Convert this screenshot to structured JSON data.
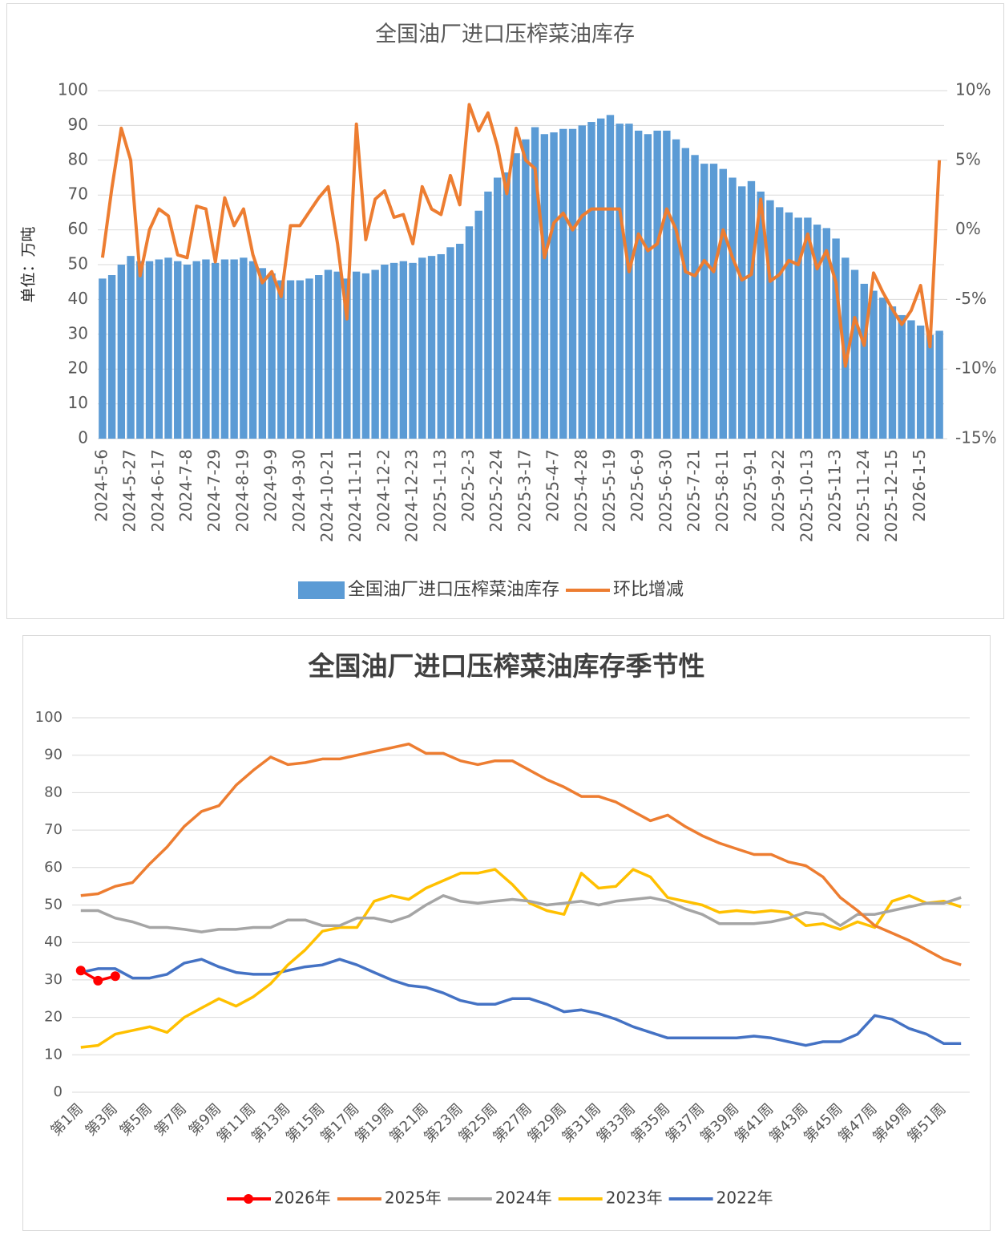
{
  "chart_data": [
    {
      "type": "combo",
      "title": "全国油厂进口压榨菜油库存",
      "y_label": "单位：万吨",
      "grid": true,
      "legend": "bottom",
      "categories": [
        "2024-5-6",
        null,
        null,
        "2024-5-27",
        null,
        null,
        "2024-6-17",
        null,
        null,
        "2024-7-8",
        null,
        null,
        "2024-7-29",
        null,
        null,
        "2024-8-19",
        null,
        null,
        "2024-9-9",
        null,
        null,
        "2024-9-30",
        null,
        null,
        "2024-10-21",
        null,
        null,
        "2024-11-11",
        null,
        null,
        "2024-12-2",
        null,
        null,
        "2024-12-23",
        null,
        null,
        "2025-1-13",
        null,
        null,
        "2025-2-3",
        null,
        null,
        "2025-2-24",
        null,
        null,
        "2025-3-17",
        null,
        null,
        "2025-4-7",
        null,
        null,
        "2025-4-28",
        null,
        null,
        "2025-5-19",
        null,
        null,
        "2025-6-9",
        null,
        null,
        "2025-6-30",
        null,
        null,
        "2025-7-21",
        null,
        null,
        "2025-8-11",
        null,
        null,
        "2025-9-1",
        null,
        null,
        "2025-9-22",
        null,
        null,
        "2025-10-13",
        null,
        null,
        "2025-11-3",
        null,
        null,
        "2025-11-24",
        null,
        null,
        "2025-12-15",
        null,
        null,
        "2026-1-5",
        null,
        null
      ],
      "ylim": [
        0,
        100
      ],
      "yticks": [
        0,
        10,
        20,
        30,
        40,
        50,
        60,
        70,
        80,
        90,
        100
      ],
      "y2lim": [
        -15,
        10
      ],
      "y2ticks": [
        {
          "value": -15,
          "label": "-15%"
        },
        {
          "value": -10,
          "label": "-10%"
        },
        {
          "value": -5,
          "label": "-5%"
        },
        {
          "value": 0,
          "label": "0%"
        },
        {
          "value": 5,
          "label": "5%"
        },
        {
          "value": 10,
          "label": "10%"
        }
      ],
      "series": [
        {
          "name": "全国油厂进口压榨菜油库存",
          "kind": "bar",
          "color": "#5b9bd5",
          "values": [
            46,
            47,
            50,
            52.5,
            51,
            51,
            51.5,
            52,
            51,
            50,
            51,
            51.5,
            50.5,
            51.5,
            51.5,
            52,
            51,
            49,
            47.5,
            45.5,
            45.5,
            45.5,
            46,
            47,
            48.5,
            48,
            46,
            48,
            47.5,
            48.5,
            50,
            50.5,
            51,
            50.5,
            52,
            52.5,
            53,
            55,
            56,
            61,
            65.5,
            71,
            75,
            76.5,
            82,
            86,
            89.5,
            87.5,
            88,
            89,
            89,
            90,
            91,
            92,
            93,
            90.5,
            90.5,
            88.5,
            87.5,
            88.5,
            88.5,
            86,
            83.5,
            81.5,
            79,
            79,
            77.5,
            75,
            72.5,
            74,
            71,
            68.5,
            66.5,
            65,
            63.5,
            63.5,
            61.5,
            60.5,
            57.5,
            52,
            48.5,
            44.5,
            42.5,
            40.5,
            38,
            35.5,
            34,
            32.5,
            29.8,
            31
          ]
        },
        {
          "name": "环比增减",
          "kind": "line",
          "axis": "y2",
          "color": "#ed7d31",
          "values": [
            -2,
            3,
            7.3,
            5,
            -3.3,
            0,
            1.5,
            1,
            -1.8,
            -2,
            1.7,
            1.5,
            -2.3,
            2.3,
            0.3,
            1.5,
            -1.8,
            -3.8,
            -3,
            -4.8,
            0.3,
            0.3,
            1.3,
            2.3,
            3.1,
            -1,
            -6.4,
            7.6,
            -0.7,
            2.2,
            2.8,
            0.9,
            1.1,
            -1,
            3.1,
            1.5,
            1.1,
            3.9,
            1.8,
            9,
            7.1,
            8.4,
            6,
            2.6,
            7.3,
            5,
            4.4,
            -2,
            0.5,
            1.2,
            0,
            1,
            1.5,
            1.5,
            1.5,
            1.5,
            -3,
            -0.3,
            -1.5,
            -1,
            1.5,
            0,
            -3,
            -3.3,
            -2.2,
            -3,
            0,
            -2,
            -3.6,
            -3.2,
            2.2,
            -3.7,
            -3.2,
            -2.2,
            -2.5,
            -0.3,
            -2.8,
            -1.5,
            -3.8,
            -9.8,
            -6.3,
            -8.3,
            -3.1,
            -4.5,
            -5.7,
            -6.8,
            -5.8,
            -4,
            -8.4,
            5
          ]
        }
      ]
    },
    {
      "type": "line",
      "title": "全国油厂进口压榨菜油库存季节性",
      "grid": true,
      "legend": "bottom",
      "categories": [
        "第1周",
        null,
        "第3周",
        null,
        "第5周",
        null,
        "第7周",
        null,
        "第9周",
        null,
        "第11周",
        null,
        "第13周",
        null,
        "第15周",
        null,
        "第17周",
        null,
        "第19周",
        null,
        "第21周",
        null,
        "第23周",
        null,
        "第25周",
        null,
        "第27周",
        null,
        "第29周",
        null,
        "第31周",
        null,
        "第33周",
        null,
        "第35周",
        null,
        "第37周",
        null,
        "第39周",
        null,
        "第41周",
        null,
        "第43周",
        null,
        "第45周",
        null,
        "第47周",
        null,
        "第49周",
        null,
        "第51周",
        null
      ],
      "ylim": [
        0,
        100
      ],
      "yticks": [
        0,
        10,
        20,
        30,
        40,
        50,
        60,
        70,
        80,
        90,
        100
      ],
      "series": [
        {
          "name": "2026年",
          "color": "#ff0000",
          "markers": true,
          "values": [
            32.5,
            29.8,
            31,
            null,
            null,
            null,
            null,
            null,
            null,
            null,
            null,
            null,
            null,
            null,
            null,
            null,
            null,
            null,
            null,
            null,
            null,
            null,
            null,
            null,
            null,
            null,
            null,
            null,
            null,
            null,
            null,
            null,
            null,
            null,
            null,
            null,
            null,
            null,
            null,
            null,
            null,
            null,
            null,
            null,
            null,
            null,
            null,
            null,
            null,
            null,
            null,
            null
          ]
        },
        {
          "name": "2025年",
          "color": "#ed7d31",
          "values": [
            52.5,
            53,
            55,
            56,
            61,
            65.5,
            71,
            75,
            76.5,
            82,
            86,
            89.5,
            87.5,
            88,
            89,
            89,
            90,
            91,
            92,
            93,
            90.5,
            90.5,
            88.5,
            87.5,
            88.5,
            88.5,
            86,
            83.5,
            81.5,
            79,
            79,
            77.5,
            75,
            72.5,
            74,
            71,
            68.5,
            66.5,
            65,
            63.5,
            63.5,
            61.5,
            60.5,
            57.5,
            52,
            48.5,
            44.5,
            42.5,
            40.5,
            38,
            35.5,
            34
          ]
        },
        {
          "name": "2024年",
          "color": "#a5a5a5",
          "values": [
            48.5,
            48.5,
            46.5,
            45.5,
            44,
            44,
            43.5,
            42.8,
            43.5,
            43.5,
            44,
            44,
            46,
            46,
            44.5,
            44.5,
            46.5,
            46.5,
            45.5,
            47,
            50,
            52.5,
            51,
            50.5,
            51,
            51.5,
            51,
            50,
            50.5,
            51,
            50,
            51,
            51.5,
            52,
            51,
            49,
            47.5,
            45,
            45,
            45,
            45.5,
            46.5,
            48,
            47.5,
            44.5,
            47.5,
            47.5,
            48.5,
            49.5,
            50.5,
            50.5,
            52
          ]
        },
        {
          "name": "2023年",
          "color": "#ffc000",
          "values": [
            12,
            12.5,
            15.5,
            16.5,
            17.5,
            16,
            20,
            22.5,
            25,
            23,
            25.5,
            29,
            34,
            38,
            43,
            44,
            44,
            51,
            52.5,
            51.5,
            54.5,
            56.5,
            58.5,
            58.5,
            59.5,
            55.5,
            50.5,
            48.5,
            47.5,
            58.5,
            54.5,
            55,
            59.5,
            57.5,
            52,
            51,
            50,
            48,
            48.5,
            48,
            48.5,
            48,
            44.5,
            45,
            43.5,
            45.5,
            44,
            51,
            52.5,
            50.5,
            51,
            49.5
          ]
        },
        {
          "name": "2022年",
          "color": "#4472c4",
          "values": [
            32,
            33,
            33,
            30.5,
            30.5,
            31.5,
            34.5,
            35.5,
            33.5,
            32,
            31.5,
            31.5,
            32.5,
            33.5,
            34,
            35.5,
            34,
            32,
            30,
            28.5,
            28,
            26.5,
            24.5,
            23.5,
            23.5,
            25,
            25,
            23.5,
            21.5,
            22,
            21,
            19.5,
            17.5,
            16,
            14.5,
            14.5,
            14.5,
            14.5,
            14.5,
            15,
            14.5,
            13.5,
            12.5,
            13.5,
            13.5,
            15.5,
            20.5,
            19.5,
            17,
            15.5,
            13,
            13
          ]
        }
      ]
    }
  ]
}
